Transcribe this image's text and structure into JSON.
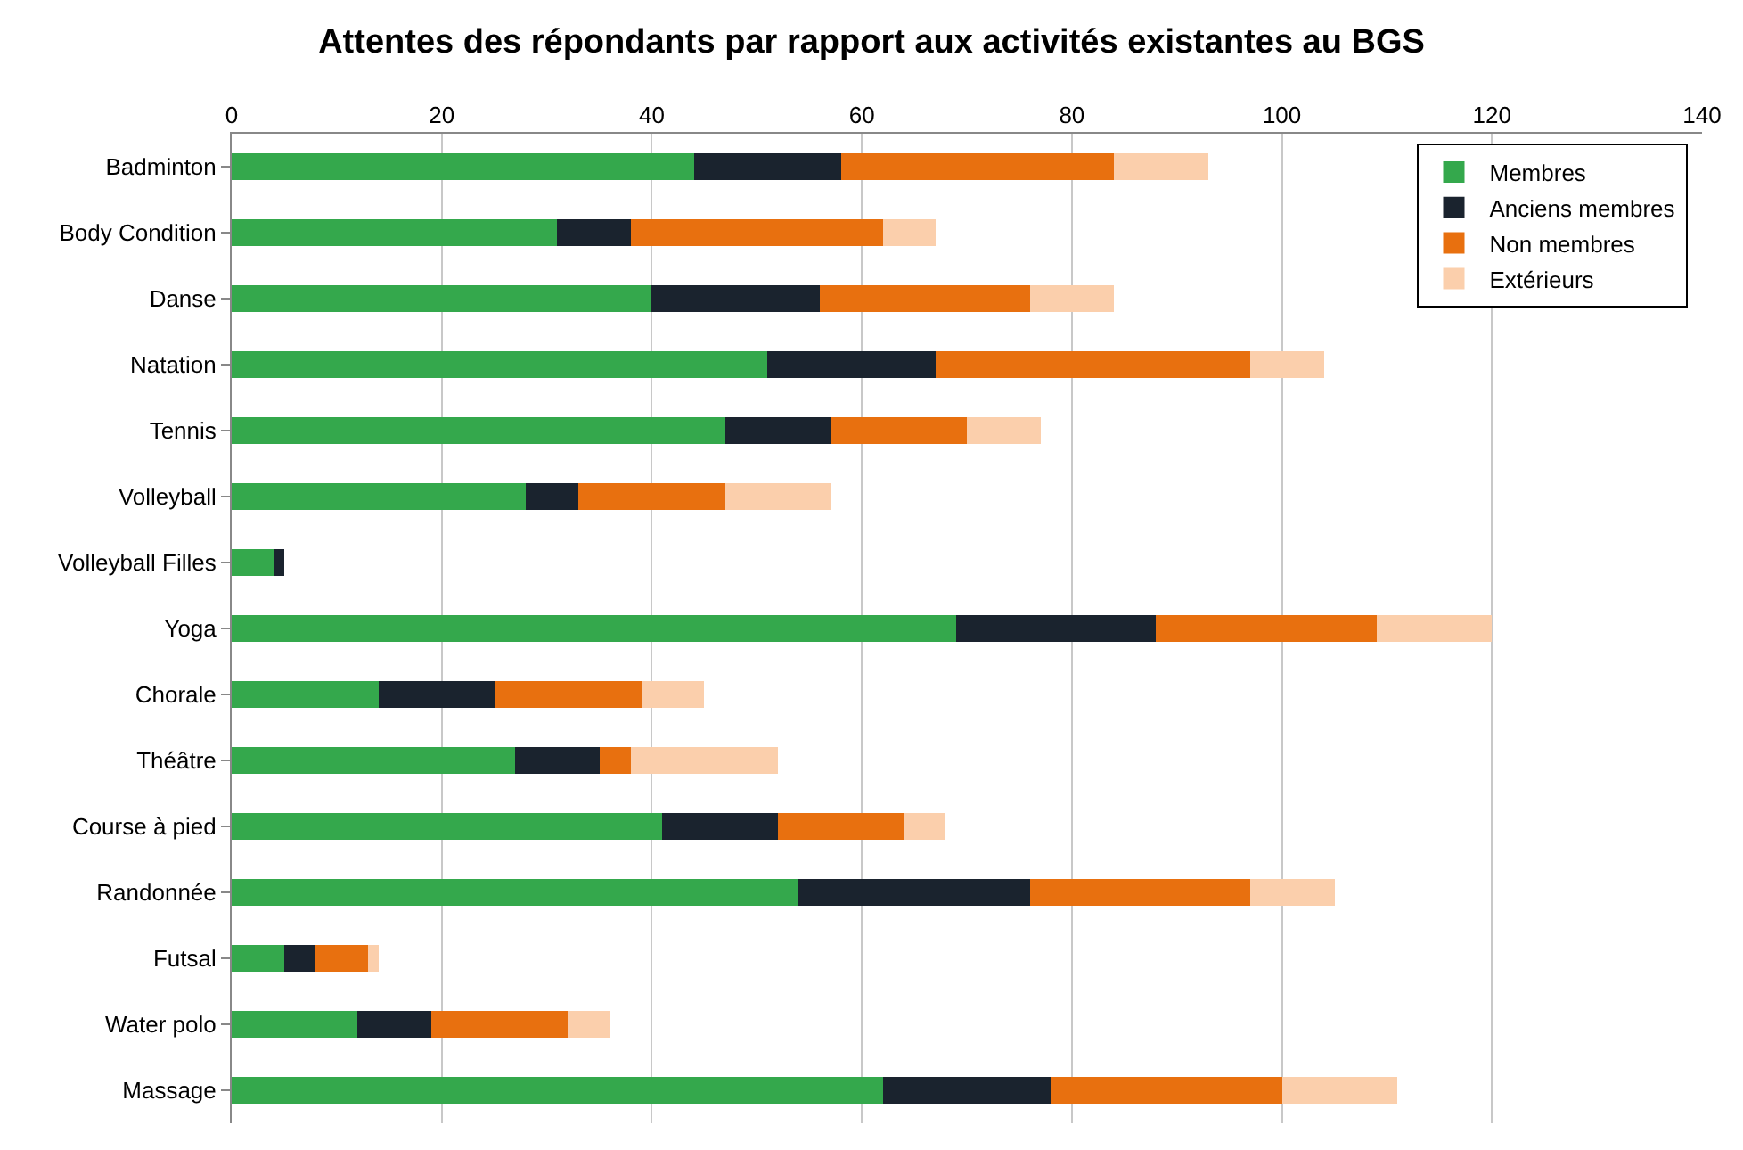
{
  "chart_data": {
    "type": "bar",
    "orientation": "horizontal",
    "stacked": true,
    "title": "Attentes des répondants par rapport aux activités existantes au BGS",
    "categories": [
      "Badminton",
      "Body Condition",
      "Danse",
      "Natation",
      "Tennis",
      "Volleyball",
      "Volleyball Filles",
      "Yoga",
      "Chorale",
      "Théâtre",
      "Course à pied",
      "Randonnée",
      "Futsal",
      "Water polo",
      "Massage"
    ],
    "series": [
      {
        "name": "Membres",
        "color": "#34a84c",
        "values": [
          44,
          31,
          40,
          51,
          47,
          28,
          4,
          69,
          14,
          27,
          41,
          54,
          5,
          12,
          62
        ]
      },
      {
        "name": "Anciens membres",
        "color": "#1a232e",
        "values": [
          14,
          7,
          16,
          16,
          10,
          5,
          1,
          19,
          11,
          8,
          11,
          22,
          3,
          7,
          16
        ]
      },
      {
        "name": "Non membres",
        "color": "#e8700f",
        "values": [
          26,
          24,
          20,
          30,
          13,
          14,
          0,
          21,
          14,
          3,
          12,
          21,
          5,
          13,
          22
        ]
      },
      {
        "name": "Extérieurs",
        "color": "#fbcfac",
        "values": [
          9,
          5,
          8,
          7,
          7,
          10,
          0,
          11,
          6,
          14,
          4,
          8,
          1,
          4,
          11
        ]
      }
    ],
    "xlim": [
      0,
      140
    ],
    "xticks": [
      0,
      20,
      40,
      60,
      80,
      100,
      120,
      140
    ],
    "grid": "x",
    "legend": "top right"
  }
}
